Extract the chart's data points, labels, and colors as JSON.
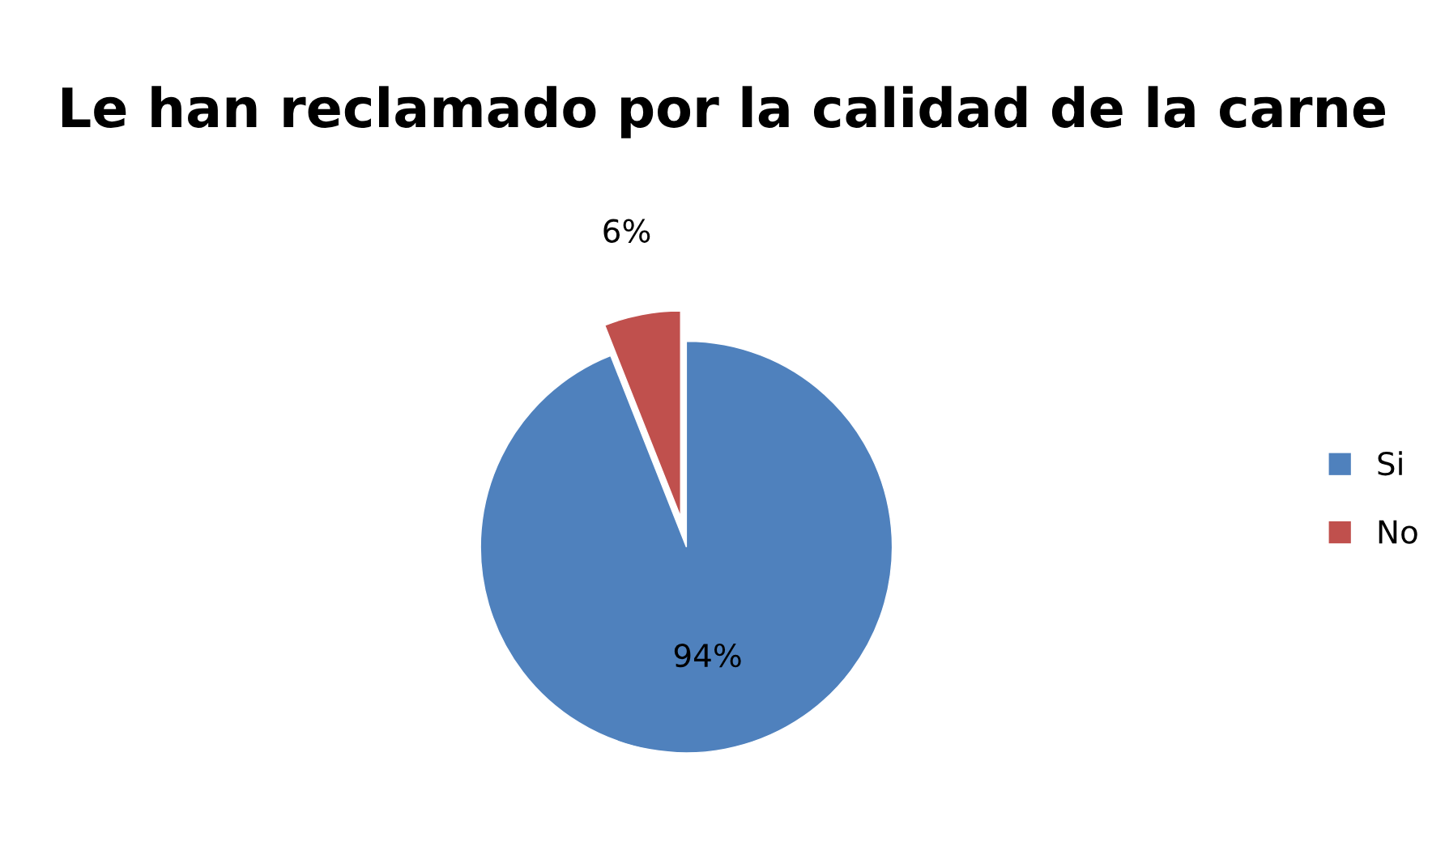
{
  "chart_data": {
    "type": "pie",
    "title": "Le han reclamado por la calidad de la carne",
    "categories": [
      "Si",
      "No"
    ],
    "values": [
      94,
      6
    ],
    "colors": [
      "#4f81bd",
      "#c0504d"
    ],
    "value_labels": [
      "94%",
      "6%"
    ],
    "legend": "right"
  }
}
